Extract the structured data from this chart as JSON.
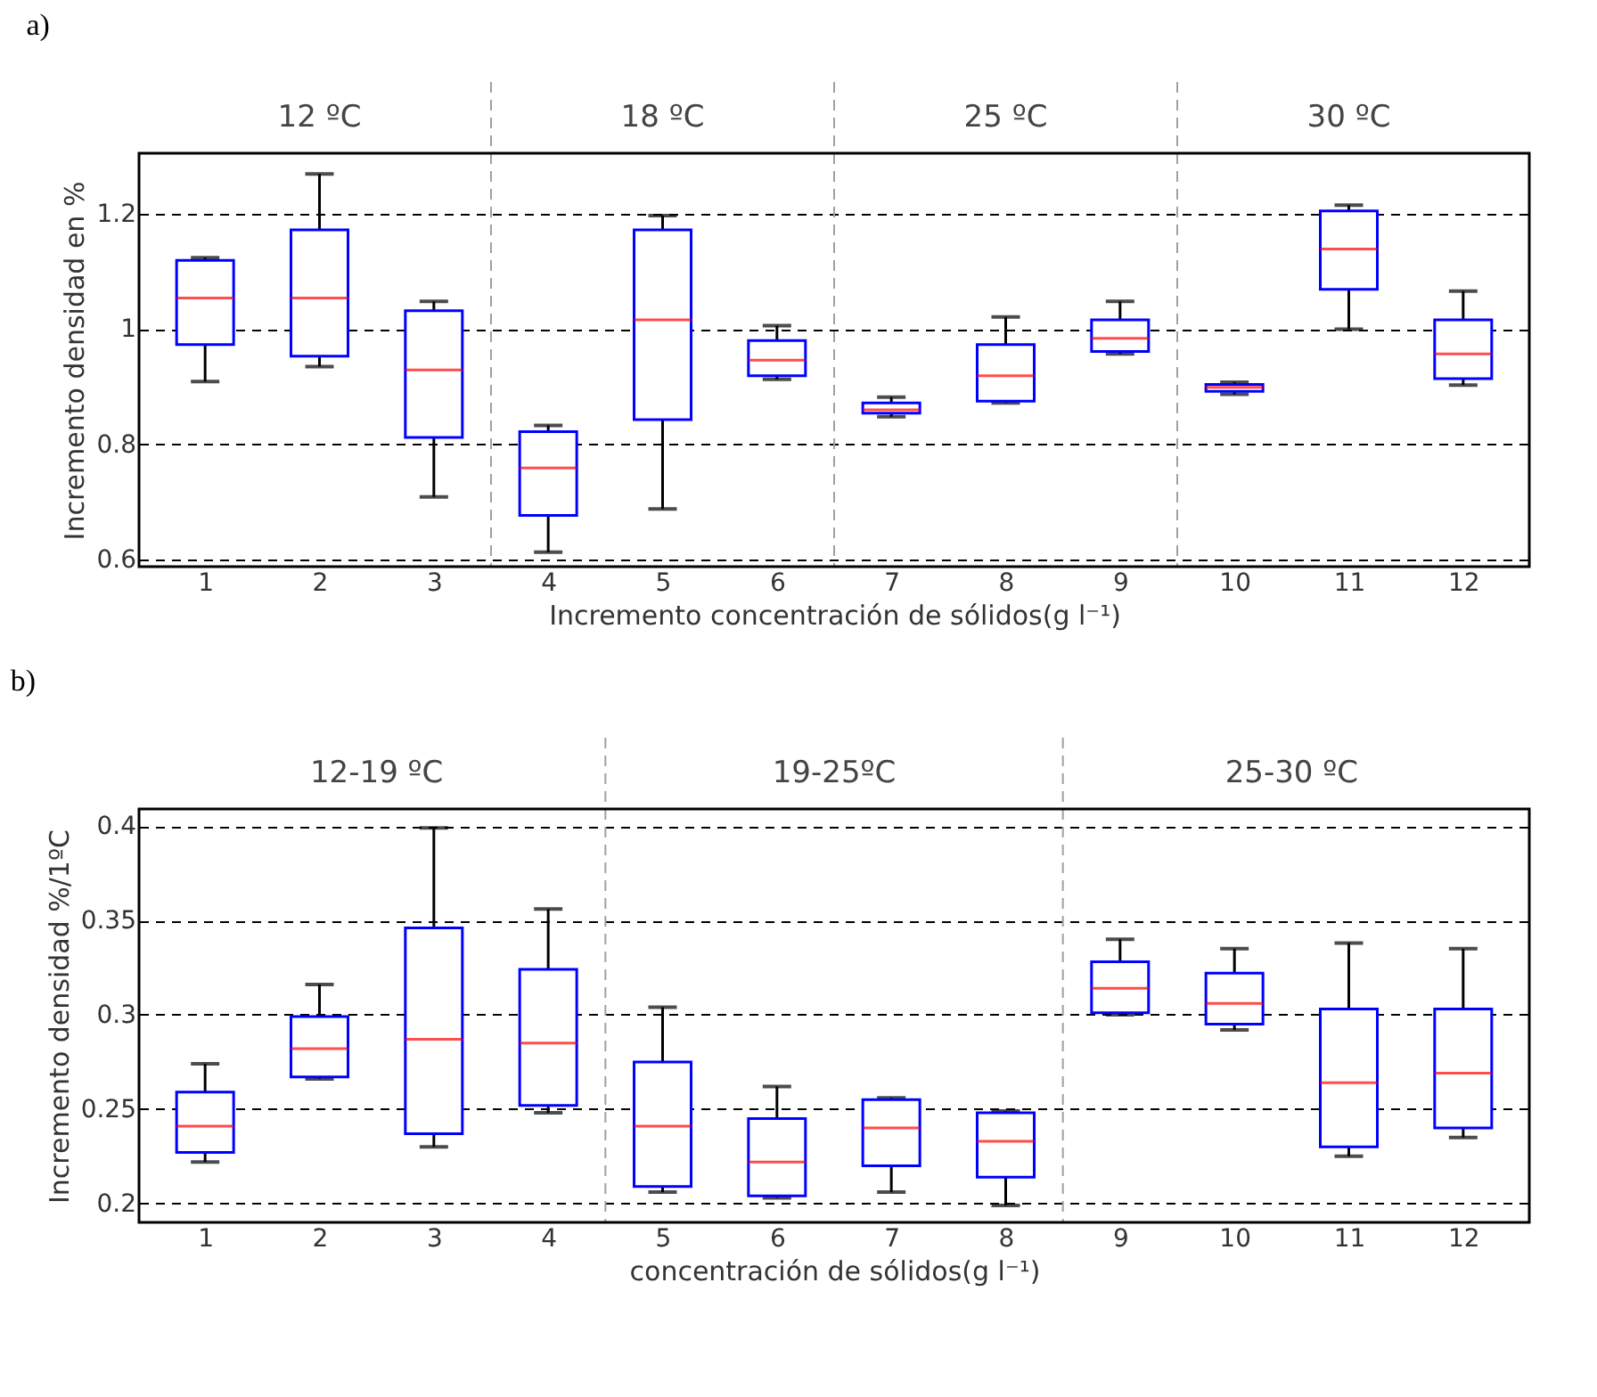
{
  "chart_data": [
    {
      "type": "box",
      "title": "a)",
      "xlabel": "Incremento concentración de sólidos(g l⁻¹)",
      "ylabel": "Incremento densidad en %",
      "x": [
        1,
        2,
        3,
        4,
        5,
        6,
        7,
        8,
        9,
        10,
        11,
        12
      ],
      "xlim": [
        0.5,
        12.5
      ],
      "xticks": [
        1,
        2,
        3,
        4,
        5,
        6,
        7,
        8,
        9,
        10,
        11,
        12
      ],
      "ylim": [
        0.588,
        1.305
      ],
      "yticks": [
        0.6,
        0.8,
        1,
        1.2
      ],
      "grid": "y",
      "boxes": [
        {
          "low": 0.909,
          "q1": 0.973,
          "median": 1.054,
          "q3": 1.119,
          "high": 1.124
        },
        {
          "low": 0.935,
          "q1": 0.953,
          "median": 1.054,
          "q3": 1.172,
          "high": 1.269
        },
        {
          "low": 0.709,
          "q1": 0.812,
          "median": 0.929,
          "q3": 1.032,
          "high": 1.048
        },
        {
          "low": 0.613,
          "q1": 0.677,
          "median": 0.759,
          "q3": 0.822,
          "high": 0.833
        },
        {
          "low": 0.688,
          "q1": 0.843,
          "median": 1.016,
          "q3": 1.172,
          "high": 1.197
        },
        {
          "low": 0.913,
          "q1": 0.919,
          "median": 0.946,
          "q3": 0.98,
          "high": 1.006
        },
        {
          "low": 0.848,
          "q1": 0.854,
          "median": 0.86,
          "q3": 0.872,
          "high": 0.882
        },
        {
          "low": 0.872,
          "q1": 0.875,
          "median": 0.919,
          "q3": 0.973,
          "high": 1.021
        },
        {
          "low": 0.957,
          "q1": 0.961,
          "median": 0.984,
          "q3": 1.016,
          "high": 1.048
        },
        {
          "low": 0.887,
          "q1": 0.892,
          "median": 0.899,
          "q3": 0.904,
          "high": 0.908
        },
        {
          "low": 1.0,
          "q1": 1.069,
          "median": 1.139,
          "q3": 1.205,
          "high": 1.215
        },
        {
          "low": 0.903,
          "q1": 0.914,
          "median": 0.957,
          "q3": 1.016,
          "high": 1.066
        }
      ],
      "ref_lines": [
        {
          "axis": "x",
          "value": 3.5,
          "color": "#a0a0a0",
          "line_style": "dashed"
        },
        {
          "axis": "x",
          "value": 6.5,
          "color": "#a0a0a0",
          "line_style": "dashed"
        },
        {
          "axis": "x",
          "value": 9.5,
          "color": "#a0a0a0",
          "line_style": "dashed"
        }
      ],
      "annotations": [
        "12 ºC",
        "18 ºC",
        "25 ºC",
        "30 ºC"
      ]
    },
    {
      "type": "box",
      "title": "b)",
      "xlabel": "concentración de sólidos(g l⁻¹)",
      "ylabel": "Incremento densidad %/1ºC",
      "x": [
        1,
        2,
        3,
        4,
        5,
        6,
        7,
        8,
        9,
        10,
        11,
        12
      ],
      "xlim": [
        0.5,
        12.5
      ],
      "xticks": [
        1,
        2,
        3,
        4,
        5,
        6,
        7,
        8,
        9,
        10,
        11,
        12
      ],
      "ylim": [
        0.19,
        0.409
      ],
      "yticks": [
        0.2,
        0.25,
        0.3,
        0.35,
        0.4
      ],
      "grid": "y",
      "boxes": [
        {
          "low": 0.222,
          "q1": 0.227,
          "median": 0.241,
          "q3": 0.259,
          "high": 0.274
        },
        {
          "low": 0.266,
          "q1": 0.267,
          "median": 0.282,
          "q3": 0.299,
          "high": 0.316
        },
        {
          "low": 0.23,
          "q1": 0.237,
          "median": 0.287,
          "q3": 0.346,
          "high": 0.399
        },
        {
          "low": 0.248,
          "q1": 0.252,
          "median": 0.285,
          "q3": 0.324,
          "high": 0.356
        },
        {
          "low": 0.206,
          "q1": 0.209,
          "median": 0.241,
          "q3": 0.275,
          "high": 0.304
        },
        {
          "low": 0.203,
          "q1": 0.204,
          "median": 0.222,
          "q3": 0.245,
          "high": 0.262
        },
        {
          "low": 0.206,
          "q1": 0.22,
          "median": 0.24,
          "q3": 0.255,
          "high": 0.256
        },
        {
          "low": 0.199,
          "q1": 0.214,
          "median": 0.233,
          "q3": 0.248,
          "high": 0.249
        },
        {
          "low": 0.3,
          "q1": 0.301,
          "median": 0.314,
          "q3": 0.328,
          "high": 0.34
        },
        {
          "low": 0.292,
          "q1": 0.295,
          "median": 0.306,
          "q3": 0.322,
          "high": 0.335
        },
        {
          "low": 0.225,
          "q1": 0.23,
          "median": 0.264,
          "q3": 0.303,
          "high": 0.338
        },
        {
          "low": 0.235,
          "q1": 0.24,
          "median": 0.269,
          "q3": 0.303,
          "high": 0.335
        }
      ],
      "ref_lines": [
        {
          "axis": "x",
          "value": 4.5,
          "color": "#a0a0a0",
          "line_style": "dashed"
        },
        {
          "axis": "x",
          "value": 8.5,
          "color": "#a0a0a0",
          "line_style": "dashed"
        }
      ],
      "annotations": [
        "12-19 ºC",
        "19-25ºC",
        "25-30 ºC"
      ]
    }
  ]
}
